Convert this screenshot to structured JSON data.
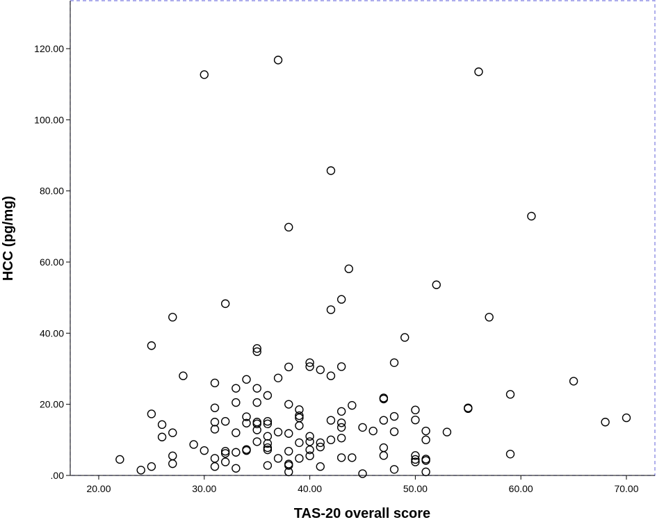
{
  "chart_data": {
    "type": "scatter",
    "xlabel": "TAS-20 overall score",
    "ylabel": "HCC (pg/mg)",
    "xlim": [
      17,
      73
    ],
    "ylim": [
      0,
      132
    ],
    "xticks": [
      20,
      30,
      40,
      50,
      60,
      70
    ],
    "yticks": [
      0,
      20,
      40,
      60,
      80,
      100,
      120
    ],
    "xtick_labels": [
      "20.00",
      "30.00",
      "40.00",
      "50.00",
      "60.00",
      "70.00"
    ],
    "ytick_labels": [
      ".00",
      "20.00",
      "40.00",
      "60.00",
      "80.00",
      "100.00",
      "120.00"
    ],
    "grid": false,
    "points": [
      {
        "x": 22,
        "y": 4.5
      },
      {
        "x": 24,
        "y": 1.5
      },
      {
        "x": 25,
        "y": 36.5
      },
      {
        "x": 25,
        "y": 17.3
      },
      {
        "x": 25,
        "y": 2.5
      },
      {
        "x": 26,
        "y": 14.3
      },
      {
        "x": 26,
        "y": 10.8
      },
      {
        "x": 27,
        "y": 44.5
      },
      {
        "x": 27,
        "y": 12
      },
      {
        "x": 27,
        "y": 5.5
      },
      {
        "x": 27,
        "y": 3.3
      },
      {
        "x": 28,
        "y": 28
      },
      {
        "x": 29,
        "y": 8.7
      },
      {
        "x": 30,
        "y": 112.7
      },
      {
        "x": 30,
        "y": 7
      },
      {
        "x": 31,
        "y": 26
      },
      {
        "x": 31,
        "y": 19
      },
      {
        "x": 31,
        "y": 15
      },
      {
        "x": 31,
        "y": 13
      },
      {
        "x": 31,
        "y": 4.8
      },
      {
        "x": 31,
        "y": 2.5
      },
      {
        "x": 32,
        "y": 48.3
      },
      {
        "x": 32,
        "y": 15.2
      },
      {
        "x": 32,
        "y": 6.8
      },
      {
        "x": 32,
        "y": 6.2
      },
      {
        "x": 32,
        "y": 3.8
      },
      {
        "x": 33,
        "y": 24.5
      },
      {
        "x": 33,
        "y": 20.5
      },
      {
        "x": 33,
        "y": 12
      },
      {
        "x": 33,
        "y": 6.5
      },
      {
        "x": 33,
        "y": 2
      },
      {
        "x": 34,
        "y": 27
      },
      {
        "x": 34,
        "y": 16.5
      },
      {
        "x": 34,
        "y": 14.7
      },
      {
        "x": 34,
        "y": 7.3
      },
      {
        "x": 34,
        "y": 7
      },
      {
        "x": 35,
        "y": 35.7
      },
      {
        "x": 35,
        "y": 34.8
      },
      {
        "x": 35,
        "y": 24.5
      },
      {
        "x": 35,
        "y": 20.5
      },
      {
        "x": 35,
        "y": 15
      },
      {
        "x": 35,
        "y": 14.5
      },
      {
        "x": 35,
        "y": 12.8
      },
      {
        "x": 35,
        "y": 9.5
      },
      {
        "x": 36,
        "y": 22.5
      },
      {
        "x": 36,
        "y": 15.2
      },
      {
        "x": 36,
        "y": 14.5
      },
      {
        "x": 36,
        "y": 11
      },
      {
        "x": 36,
        "y": 9
      },
      {
        "x": 36,
        "y": 7.8
      },
      {
        "x": 36,
        "y": 7.2
      },
      {
        "x": 36,
        "y": 2.8
      },
      {
        "x": 37,
        "y": 116.8
      },
      {
        "x": 37,
        "y": 27.4
      },
      {
        "x": 37,
        "y": 12.2
      },
      {
        "x": 37,
        "y": 4.8
      },
      {
        "x": 38,
        "y": 69.8
      },
      {
        "x": 38,
        "y": 30.5
      },
      {
        "x": 38,
        "y": 20
      },
      {
        "x": 38,
        "y": 11.8
      },
      {
        "x": 38,
        "y": 6.8
      },
      {
        "x": 38,
        "y": 3.2
      },
      {
        "x": 38,
        "y": 2.8
      },
      {
        "x": 38,
        "y": 1
      },
      {
        "x": 39,
        "y": 18.5
      },
      {
        "x": 39,
        "y": 16.8
      },
      {
        "x": 39,
        "y": 16.2
      },
      {
        "x": 39,
        "y": 14
      },
      {
        "x": 39,
        "y": 9.2
      },
      {
        "x": 39,
        "y": 4.8
      },
      {
        "x": 40,
        "y": 31.7
      },
      {
        "x": 40,
        "y": 30.6
      },
      {
        "x": 40,
        "y": 11
      },
      {
        "x": 40,
        "y": 9.5
      },
      {
        "x": 40,
        "y": 7.2
      },
      {
        "x": 40,
        "y": 5.5
      },
      {
        "x": 41,
        "y": 29.7
      },
      {
        "x": 41,
        "y": 9.2
      },
      {
        "x": 41,
        "y": 8
      },
      {
        "x": 41,
        "y": 2.5
      },
      {
        "x": 42,
        "y": 85.7
      },
      {
        "x": 42,
        "y": 46.6
      },
      {
        "x": 42,
        "y": 28
      },
      {
        "x": 42,
        "y": 15.5
      },
      {
        "x": 42,
        "y": 10
      },
      {
        "x": 43,
        "y": 49.5
      },
      {
        "x": 43,
        "y": 30.6
      },
      {
        "x": 43,
        "y": 18
      },
      {
        "x": 43,
        "y": 14.8
      },
      {
        "x": 43,
        "y": 13.5
      },
      {
        "x": 43,
        "y": 10.5
      },
      {
        "x": 43,
        "y": 5
      },
      {
        "x": 43.7,
        "y": 58.1
      },
      {
        "x": 44,
        "y": 19.7
      },
      {
        "x": 44,
        "y": 5
      },
      {
        "x": 45,
        "y": 13.5
      },
      {
        "x": 45,
        "y": 0.5
      },
      {
        "x": 46,
        "y": 12.5
      },
      {
        "x": 47,
        "y": 21.8
      },
      {
        "x": 47,
        "y": 21.5
      },
      {
        "x": 47,
        "y": 15.5
      },
      {
        "x": 47,
        "y": 7.8
      },
      {
        "x": 47,
        "y": 5.6
      },
      {
        "x": 48,
        "y": 31.7
      },
      {
        "x": 48,
        "y": 16.6
      },
      {
        "x": 48,
        "y": 12.3
      },
      {
        "x": 48,
        "y": 1.7
      },
      {
        "x": 49,
        "y": 38.8
      },
      {
        "x": 50,
        "y": 18.4
      },
      {
        "x": 50,
        "y": 15.6
      },
      {
        "x": 50,
        "y": 5.6
      },
      {
        "x": 50,
        "y": 4.5
      },
      {
        "x": 50,
        "y": 3.8
      },
      {
        "x": 51,
        "y": 12.5
      },
      {
        "x": 51,
        "y": 10
      },
      {
        "x": 51,
        "y": 4.6
      },
      {
        "x": 51,
        "y": 4.2
      },
      {
        "x": 51,
        "y": 1
      },
      {
        "x": 52,
        "y": 53.6
      },
      {
        "x": 53,
        "y": 12.2
      },
      {
        "x": 55,
        "y": 19
      },
      {
        "x": 55,
        "y": 18.8
      },
      {
        "x": 56,
        "y": 113.5
      },
      {
        "x": 57,
        "y": 44.5
      },
      {
        "x": 59,
        "y": 22.8
      },
      {
        "x": 59,
        "y": 6
      },
      {
        "x": 61,
        "y": 72.9
      },
      {
        "x": 65,
        "y": 26.5
      },
      {
        "x": 68,
        "y": 15
      },
      {
        "x": 70,
        "y": 16.2
      }
    ]
  }
}
